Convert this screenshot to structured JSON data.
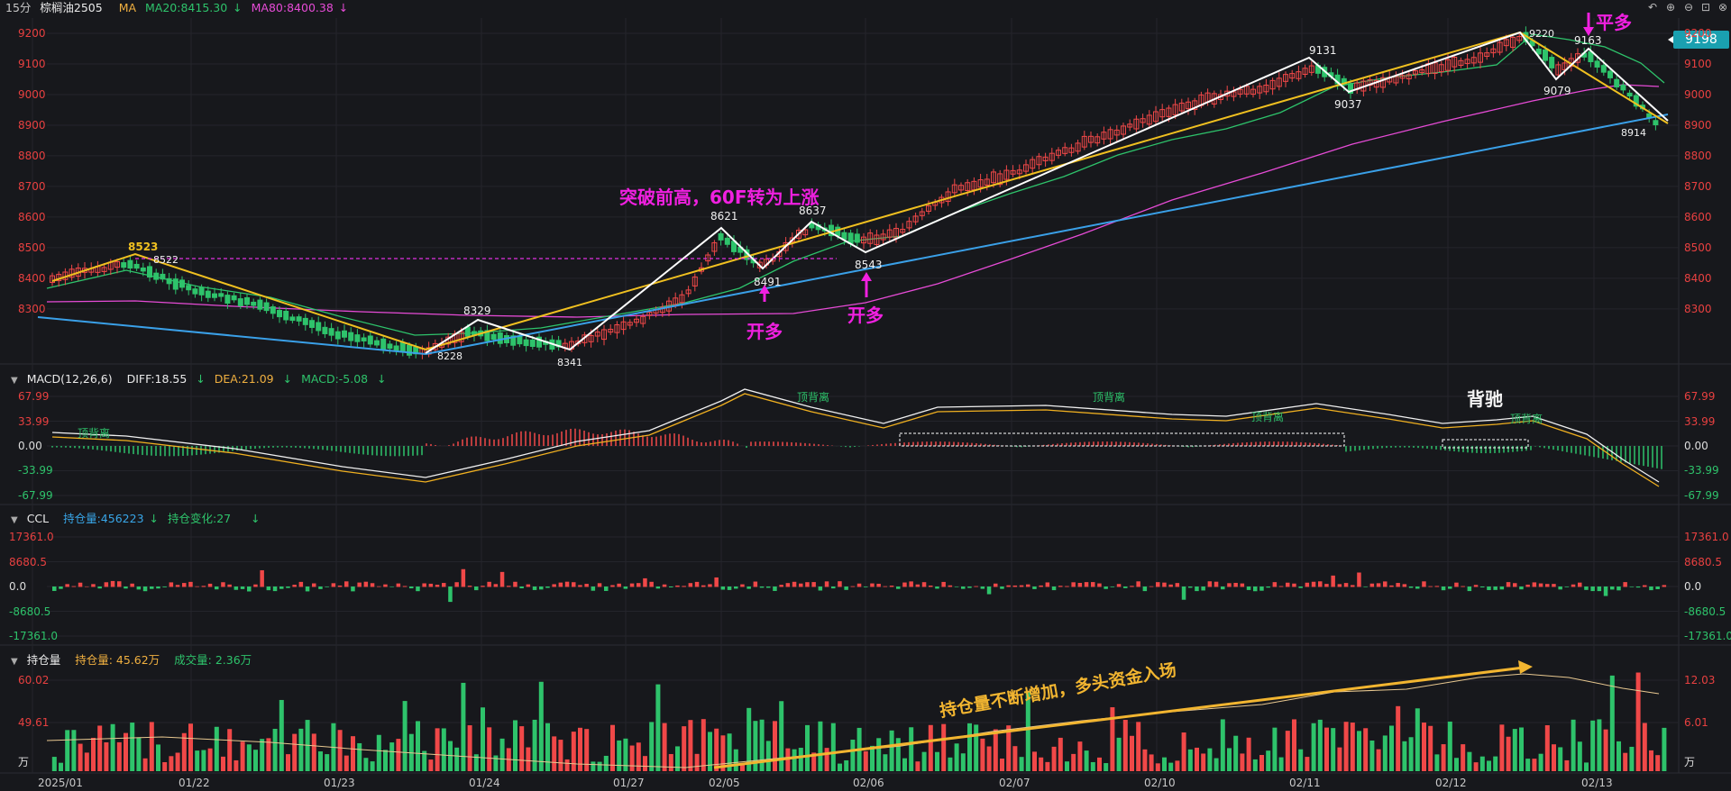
{
  "main_header": {
    "period": "15分",
    "symbol": "棕榈油2505",
    "ma_label": "MA",
    "ma20": "MA20:8415.30",
    "ma80": "MA80:8400.38"
  },
  "current_price": "9198",
  "price_axis": [
    "9200",
    "9100",
    "9000",
    "8900",
    "8800",
    "8700",
    "8600",
    "8500",
    "8400",
    "8300"
  ],
  "macd_header": {
    "name": "MACD(12,26,6)",
    "diff": "DIFF:18.55",
    "dea": "DEA:21.09",
    "macd": "MACD:-5.08"
  },
  "macd_axis": [
    "67.99",
    "33.99",
    "0.00",
    "-33.99",
    "-67.99"
  ],
  "ccl_header": {
    "name": "CCL",
    "oi": "持仓量:456223",
    "oi_change": "持仓变化:27"
  },
  "ccl_axis": [
    "17361.0",
    "8680.5",
    "0.0",
    "-8680.5",
    "-17361.0"
  ],
  "vol_header": {
    "name": "持仓量",
    "oi": "持仓量: 45.62万",
    "vol": "成交量: 2.36万"
  },
  "vol_axis_left": [
    "60.02",
    "49.61",
    "万"
  ],
  "vol_axis_right": [
    "12.03",
    "6.01",
    "万"
  ],
  "date_labels": [
    "2025/01",
    "01/22",
    "01/23",
    "01/24",
    "01/27",
    "02/05",
    "02/06",
    "02/07",
    "02/10",
    "02/11",
    "02/12",
    "02/13"
  ],
  "price_points": [
    "8523",
    "8522",
    "8228",
    "8329",
    "8341",
    "8621",
    "8491",
    "8637",
    "8543",
    "9131",
    "9037",
    "9220",
    "9163",
    "9079",
    "8914"
  ],
  "annotations": {
    "breakout": "突破前高，60F转为上涨",
    "open_long": "开多",
    "flat_long": "平多",
    "divergence": "背驰",
    "oi_increase": "持仓量不断增加，多头资金入场",
    "bottom_div": "顶背离"
  },
  "colors": {
    "up": "#f04848",
    "down": "#2ec36b",
    "ma20": "#2ec36b",
    "ma80": "#e64bd6",
    "trend_yellow": "#f0c020",
    "trend_blue": "#3aa0e8",
    "zigzag": "#ffffff"
  },
  "chart_data": [
    {
      "type": "candlestick",
      "title": "棕榈油2505 15分",
      "ylim": [
        8228,
        9220
      ],
      "x": [
        "2025/01",
        "01/22",
        "01/23",
        "01/24",
        "01/27",
        "02/05",
        "02/06",
        "02/07",
        "02/10",
        "02/11",
        "02/12",
        "02/13"
      ],
      "swing_points": [
        {
          "label": "8523",
          "value": 8523
        },
        {
          "label": "8228",
          "value": 8228
        },
        {
          "label": "8329",
          "value": 8329
        },
        {
          "label": "8341",
          "value": 8341
        },
        {
          "label": "8621",
          "value": 8621
        },
        {
          "label": "8491",
          "value": 8491
        },
        {
          "label": "8637",
          "value": 8637
        },
        {
          "label": "8543",
          "value": 8543
        },
        {
          "label": "9131",
          "value": 9131
        },
        {
          "label": "9037",
          "value": 9037
        },
        {
          "label": "9220",
          "value": 9220
        },
        {
          "label": "9163",
          "value": 9163
        },
        {
          "label": "9079",
          "value": 9079
        },
        {
          "label": "8914",
          "value": 8914
        }
      ],
      "series": [
        {
          "name": "MA20",
          "last": 8415.3
        },
        {
          "name": "MA80",
          "last": 8400.38
        }
      ]
    },
    {
      "type": "line",
      "title": "MACD(12,26,6)",
      "ylim": [
        -67.99,
        67.99
      ],
      "series": [
        {
          "name": "DIFF",
          "last": 18.55
        },
        {
          "name": "DEA",
          "last": 21.09
        },
        {
          "name": "MACD",
          "last": -5.08
        }
      ]
    },
    {
      "type": "bar",
      "title": "CCL",
      "ylim": [
        -17361.0,
        17361.0
      ],
      "series": [
        {
          "name": "持仓量",
          "last": 456223
        },
        {
          "name": "持仓变化",
          "last": 27
        }
      ]
    },
    {
      "type": "bar",
      "title": "持仓量",
      "series": [
        {
          "name": "持仓量",
          "last": 45.62
        },
        {
          "name": "成交量",
          "last": 2.36
        }
      ]
    }
  ]
}
